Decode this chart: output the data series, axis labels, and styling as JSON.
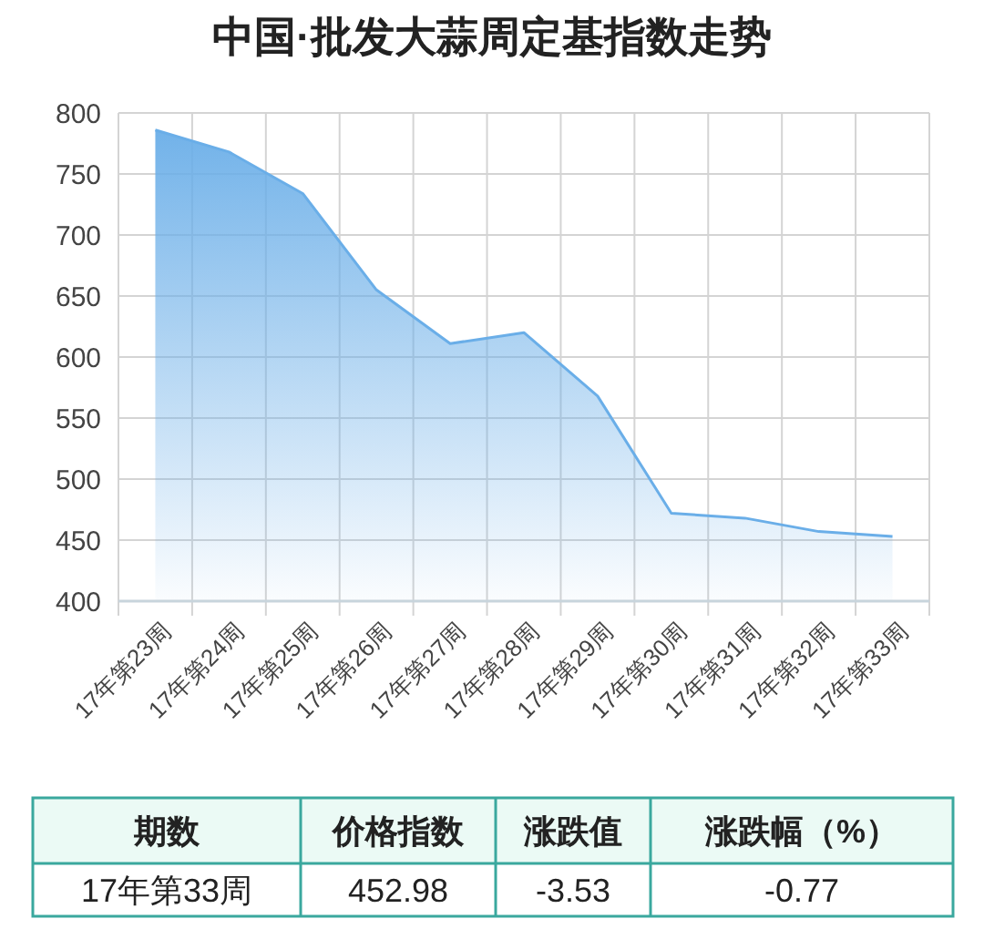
{
  "chart_data": {
    "type": "area",
    "title": "中国·批发大蒜周定基指数走势",
    "categories": [
      "17年第23周",
      "17年第24周",
      "17年第25周",
      "17年第26周",
      "17年第27周",
      "17年第28周",
      "17年第29周",
      "17年第30周",
      "17年第31周",
      "17年第32周",
      "17年第33周"
    ],
    "series": [
      {
        "color": "#6aaee8",
        "values": [
          786,
          768,
          734,
          655,
          611,
          620,
          568,
          472,
          468,
          457,
          453
        ]
      }
    ],
    "ylim": [
      400,
      800
    ],
    "yticks": [
      400,
      450,
      500,
      550,
      600,
      650,
      700,
      750,
      800
    ],
    "grid": true,
    "annotations": [
      "期数",
      "价格指数",
      "涨跌值",
      "涨跌幅（%）",
      "17年第33周",
      "452.98",
      "-3.53",
      "-0.77"
    ]
  }
}
